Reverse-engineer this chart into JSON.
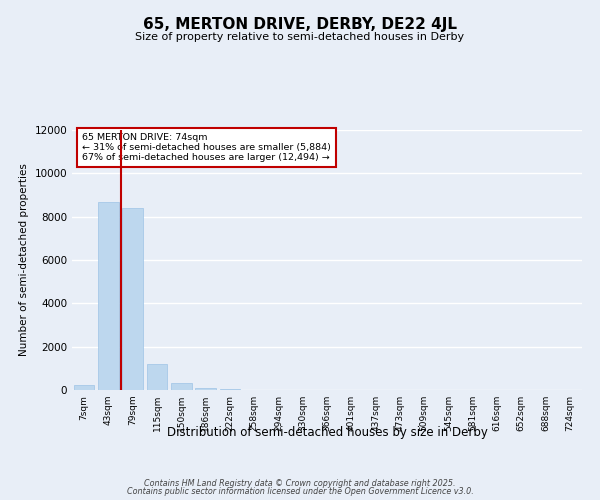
{
  "title": "65, MERTON DRIVE, DERBY, DE22 4JL",
  "subtitle": "Size of property relative to semi-detached houses in Derby",
  "xlabel": "Distribution of semi-detached houses by size in Derby",
  "ylabel": "Number of semi-detached properties",
  "annotation_text_line1": "65 MERTON DRIVE: 74sqm",
  "annotation_text_line2": "← 31% of semi-detached houses are smaller (5,884)",
  "annotation_text_line3": "67% of semi-detached houses are larger (12,494) →",
  "bar_color": "#bdd7ee",
  "bar_edge_color": "#9dc3e6",
  "vline_color": "#c00000",
  "categories": [
    "7sqm",
    "43sqm",
    "79sqm",
    "115sqm",
    "150sqm",
    "186sqm",
    "222sqm",
    "258sqm",
    "294sqm",
    "330sqm",
    "366sqm",
    "401sqm",
    "437sqm",
    "473sqm",
    "509sqm",
    "545sqm",
    "581sqm",
    "616sqm",
    "652sqm",
    "688sqm",
    "724sqm"
  ],
  "values": [
    230,
    8680,
    8380,
    1180,
    340,
    90,
    60,
    0,
    0,
    0,
    0,
    0,
    0,
    0,
    0,
    0,
    0,
    0,
    0,
    0,
    0
  ],
  "ylim": [
    0,
    12000
  ],
  "yticks": [
    0,
    2000,
    4000,
    6000,
    8000,
    10000,
    12000
  ],
  "background_color": "#e8eef7",
  "grid_color": "#ffffff",
  "footer_line1": "Contains HM Land Registry data © Crown copyright and database right 2025.",
  "footer_line2": "Contains public sector information licensed under the Open Government Licence v3.0."
}
